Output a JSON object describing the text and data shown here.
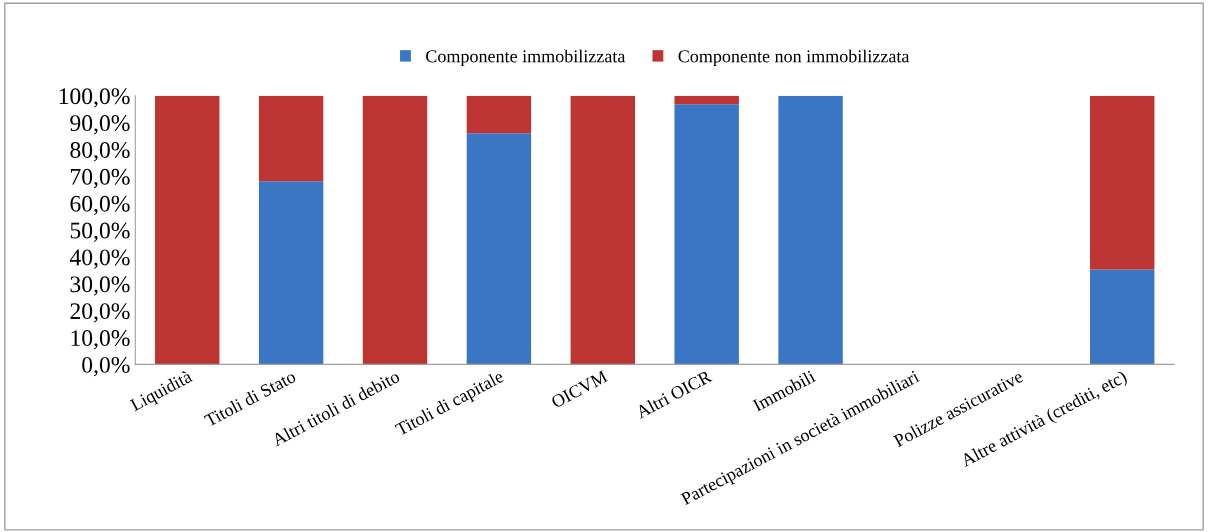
{
  "chart_data": {
    "type": "bar",
    "stacked": true,
    "categories": [
      "Liquidità",
      "Titoli di Stato",
      "Altri titoli di debito",
      "Titoli di capitale",
      "OICVM",
      "Altri OICR",
      "Immobili",
      "Partecipazioni in società immobiliari",
      "Polizze assicurative",
      "Altre attività (crediti, etc)"
    ],
    "series": [
      {
        "name": "Componente immobilizzata",
        "color": "#3a76c4",
        "values": [
          0,
          68.2,
          0,
          86.0,
          0,
          96.8,
          100,
          0,
          0,
          35.3
        ]
      },
      {
        "name": "Componente non immobilizzata",
        "color": "#bd3532",
        "values": [
          100,
          31.8,
          100,
          14.0,
          100,
          3.2,
          0,
          0,
          0,
          64.7
        ]
      }
    ],
    "ylim": [
      0,
      100
    ],
    "yticks": [
      {
        "value": 0,
        "label": "0,0%"
      },
      {
        "value": 10,
        "label": "10,0%"
      },
      {
        "value": 20,
        "label": "20,0%"
      },
      {
        "value": 30,
        "label": "30,0%"
      },
      {
        "value": 40,
        "label": "40,0%"
      },
      {
        "value": 50,
        "label": "50,0%"
      },
      {
        "value": 60,
        "label": "60,0%"
      },
      {
        "value": 70,
        "label": "70,0%"
      },
      {
        "value": 80,
        "label": "80,0%"
      },
      {
        "value": 90,
        "label": "90,0%"
      },
      {
        "value": 100,
        "label": "100,0%"
      }
    ],
    "grid": false,
    "legend": "top"
  }
}
